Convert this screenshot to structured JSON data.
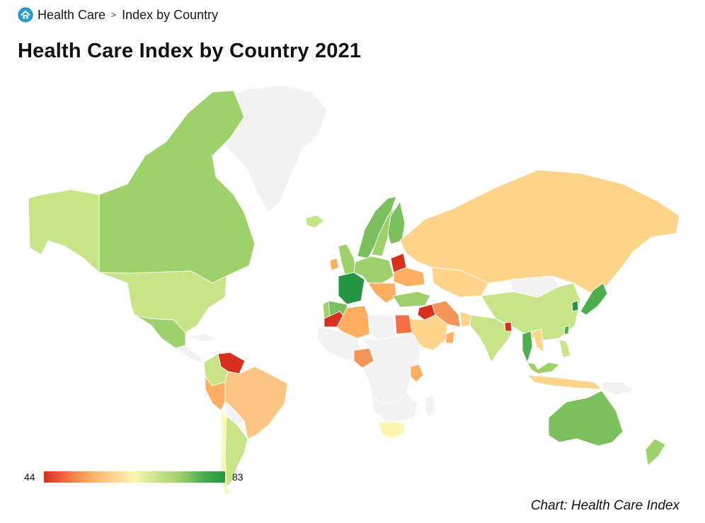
{
  "breadcrumb": {
    "home_label": "Health Care",
    "separator": ">",
    "current": "Index by Country"
  },
  "title": "Health Care Index by Country 2021",
  "legend": {
    "min": "44",
    "max": "83"
  },
  "source": "Chart: Health Care Index",
  "colors": {
    "scale": [
      "#d7301f",
      "#f46d43",
      "#fdae61",
      "#fed38a",
      "#fbf6b0",
      "#c7e486",
      "#9fd16a",
      "#4cae4c",
      "#249643"
    ],
    "no_data": "#f2f2f2",
    "border": "#ffffff",
    "icon_home": "#2aa0d0"
  },
  "map_regions": [
    {
      "name": "Greenland",
      "color": "#f2f2f2"
    },
    {
      "name": "Canada",
      "color": "#9fd16a"
    },
    {
      "name": "Alaska",
      "color": "#c7e486"
    },
    {
      "name": "United States",
      "color": "#c7e486"
    },
    {
      "name": "Mexico",
      "color": "#9fd16a"
    },
    {
      "name": "Cuba",
      "color": "#f2f2f2"
    },
    {
      "name": "Central America",
      "color": "#f2f2f2"
    },
    {
      "name": "Venezuela",
      "color": "#d7301f"
    },
    {
      "name": "Colombia",
      "color": "#c7e486"
    },
    {
      "name": "Brazil",
      "color": "#fdc484"
    },
    {
      "name": "Peru",
      "color": "#fdae61"
    },
    {
      "name": "Bolivia",
      "color": "#f2f2f2"
    },
    {
      "name": "Argentina",
      "color": "#c7e486"
    },
    {
      "name": "Chile",
      "color": "#fbf6b0"
    },
    {
      "name": "Iceland",
      "color": "#c7e486"
    },
    {
      "name": "Norway",
      "color": "#7cc05e"
    },
    {
      "name": "Sweden",
      "color": "#9fd16a"
    },
    {
      "name": "Finland",
      "color": "#7cc05e"
    },
    {
      "name": "United Kingdom",
      "color": "#9fd16a"
    },
    {
      "name": "Ireland",
      "color": "#fdae61"
    },
    {
      "name": "France",
      "color": "#249643"
    },
    {
      "name": "Spain",
      "color": "#7cc05e"
    },
    {
      "name": "Portugal",
      "color": "#9fd16a"
    },
    {
      "name": "Central Europe",
      "color": "#9fd16a"
    },
    {
      "name": "Belarus",
      "color": "#d7301f"
    },
    {
      "name": "Ukraine",
      "color": "#fdae61"
    },
    {
      "name": "Balkans",
      "color": "#fdae61"
    },
    {
      "name": "Turkey",
      "color": "#9fd16a"
    },
    {
      "name": "Russia",
      "color": "#fed38a"
    },
    {
      "name": "Kazakhstan",
      "color": "#fed38a"
    },
    {
      "name": "Mongolia",
      "color": "#f2f2f2"
    },
    {
      "name": "China",
      "color": "#c7e486"
    },
    {
      "name": "Japan",
      "color": "#4cae4c"
    },
    {
      "name": "South Korea",
      "color": "#249643"
    },
    {
      "name": "Taiwan",
      "color": "#4cae4c"
    },
    {
      "name": "India",
      "color": "#c7e486"
    },
    {
      "name": "Pakistan",
      "color": "#fed38a"
    },
    {
      "name": "Bangladesh",
      "color": "#d7301f"
    },
    {
      "name": "Thailand",
      "color": "#4cae4c"
    },
    {
      "name": "Vietnam",
      "color": "#fed38a"
    },
    {
      "name": "Philippines",
      "color": "#c7e486"
    },
    {
      "name": "Malaysia",
      "color": "#9fd16a"
    },
    {
      "name": "Indonesia",
      "color": "#fed38a"
    },
    {
      "name": "Papua New Guinea",
      "color": "#f2f2f2"
    },
    {
      "name": "Australia",
      "color": "#7cc05e"
    },
    {
      "name": "New Zealand",
      "color": "#9fd16a"
    },
    {
      "name": "Iran",
      "color": "#f4935a"
    },
    {
      "name": "Iraq",
      "color": "#d7301f"
    },
    {
      "name": "Saudi Arabia",
      "color": "#fed38a"
    },
    {
      "name": "Oman",
      "color": "#fdae61"
    },
    {
      "name": "Morocco",
      "color": "#d7301f"
    },
    {
      "name": "Algeria",
      "color": "#fdae61"
    },
    {
      "name": "Libya",
      "color": "#f2f2f2"
    },
    {
      "name": "Egypt",
      "color": "#f46d43"
    },
    {
      "name": "West Africa",
      "color": "#f2f2f2"
    },
    {
      "name": "Nigeria",
      "color": "#f4935a"
    },
    {
      "name": "Central Africa",
      "color": "#f2f2f2"
    },
    {
      "name": "Kenya",
      "color": "#fdae61"
    },
    {
      "name": "Southern Africa",
      "color": "#f2f2f2"
    },
    {
      "name": "South Africa",
      "color": "#fbf6b0"
    },
    {
      "name": "Madagascar",
      "color": "#f2f2f2"
    }
  ]
}
